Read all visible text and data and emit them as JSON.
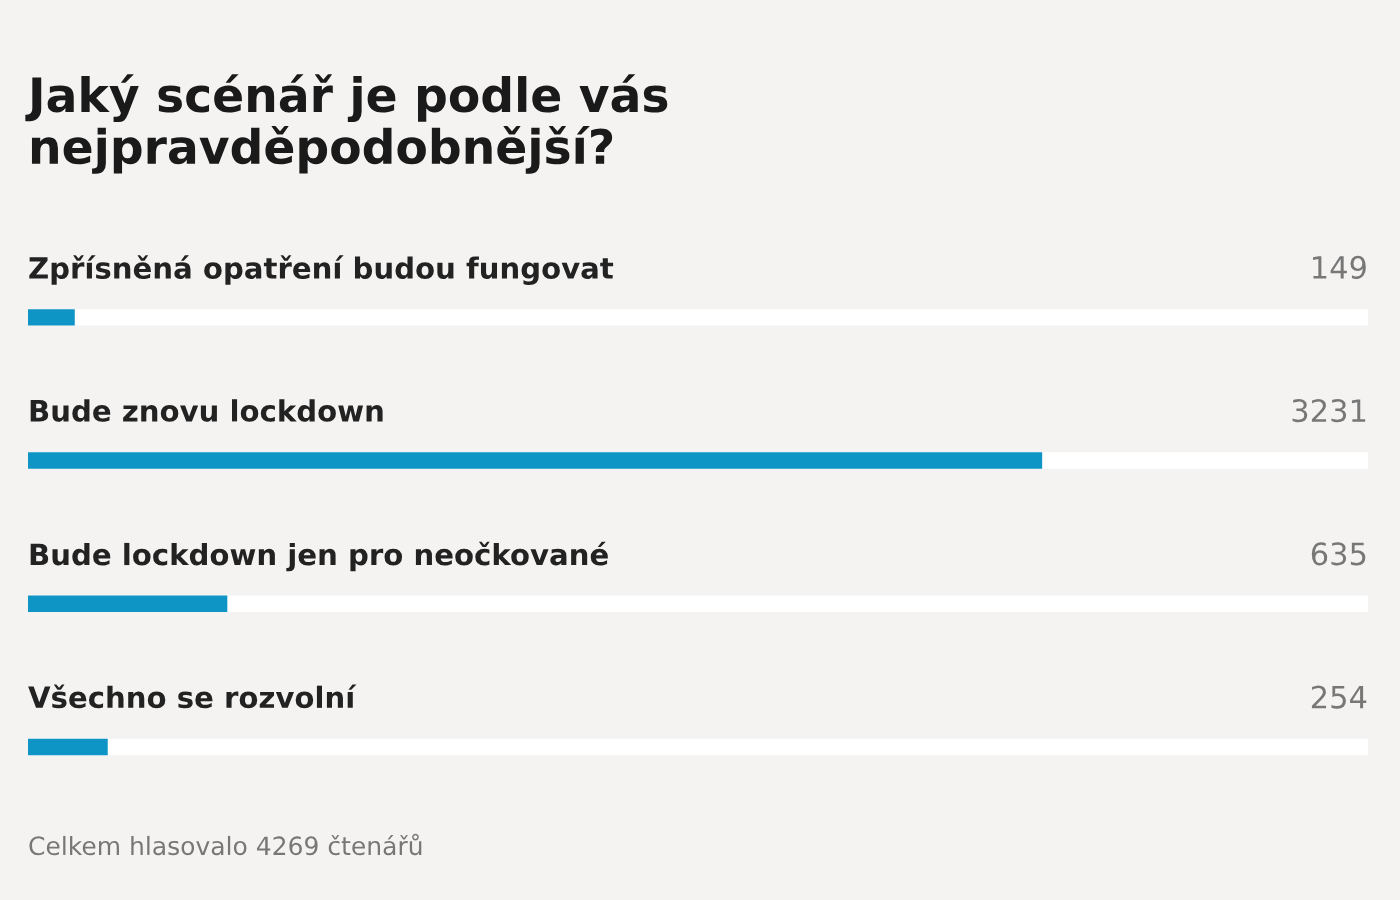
{
  "chart_data": {
    "type": "bar",
    "orientation": "horizontal",
    "title": "Jaký scénář je podle vás nejpravděpodobnější?",
    "categories": [
      "Zpřísněná opatření budou fungovat",
      "Bude znovu lockdown",
      "Bude lockdown jen pro neočkované",
      "Všechno se rozvolní"
    ],
    "values": [
      149,
      3231,
      635,
      254
    ],
    "color": "#0e95c6",
    "xlim": [
      0,
      4269
    ],
    "data_labels": true,
    "annotations": [
      "Celkem hlasovalo 4269 čtenářů"
    ]
  }
}
